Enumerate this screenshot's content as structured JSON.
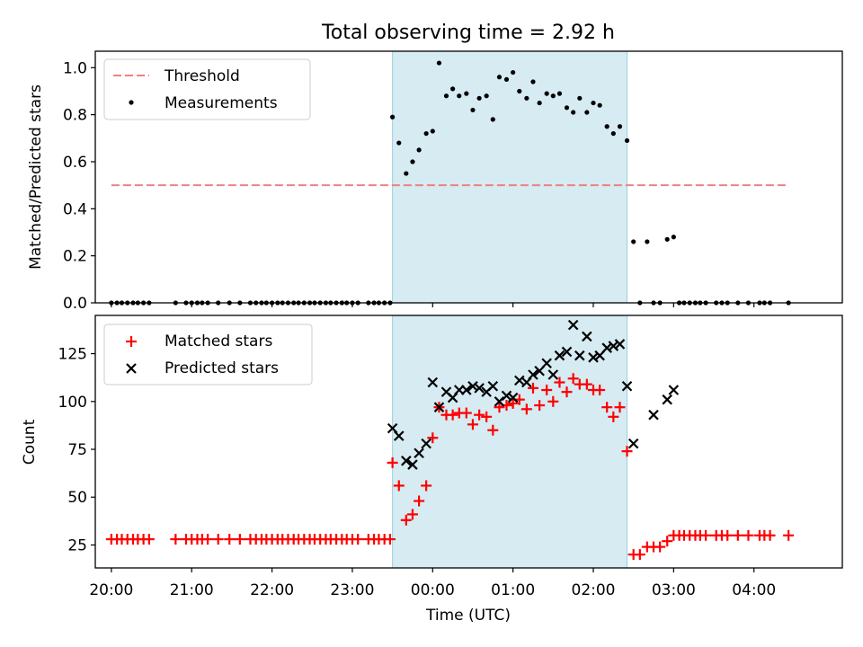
{
  "figure": {
    "title": "Total observing time = 2.92 h"
  },
  "chart_data": [
    {
      "type": "scatter",
      "panel": "top",
      "ylabel": "Matched/Predicted stars",
      "xlim": [
        -4.2,
        5.1
      ],
      "ylim": [
        0,
        1.07
      ],
      "yticks": [
        0.0,
        0.2,
        0.4,
        0.6,
        0.8,
        1.0
      ],
      "ytick_labels": [
        "0.0",
        "0.2",
        "0.4",
        "0.6",
        "0.8",
        "1.0"
      ],
      "grid": false,
      "legend": "top-left",
      "shaded_span": {
        "x": [
          -0.5,
          2.42
        ],
        "color": "#add8e6"
      },
      "threshold": {
        "name": "Threshold",
        "y": 0.5,
        "x": [
          -4.0,
          4.43
        ],
        "color": "#f08080",
        "style": "dashed"
      },
      "series": [
        {
          "name": "Measurements",
          "marker": "dot",
          "color": "#000000",
          "points": [
            [
              -4.0,
              0
            ],
            [
              -3.93,
              0
            ],
            [
              -3.87,
              0
            ],
            [
              -3.8,
              0
            ],
            [
              -3.73,
              0
            ],
            [
              -3.67,
              0
            ],
            [
              -3.6,
              0
            ],
            [
              -3.53,
              0
            ],
            [
              -3.2,
              0
            ],
            [
              -3.07,
              0
            ],
            [
              -3.0,
              0
            ],
            [
              -2.93,
              0
            ],
            [
              -2.87,
              0
            ],
            [
              -2.8,
              0
            ],
            [
              -2.67,
              0
            ],
            [
              -2.53,
              0
            ],
            [
              -2.4,
              0
            ],
            [
              -2.27,
              0
            ],
            [
              -2.2,
              0
            ],
            [
              -2.13,
              0
            ],
            [
              -2.07,
              0
            ],
            [
              -2.0,
              0
            ],
            [
              -1.93,
              0
            ],
            [
              -1.87,
              0
            ],
            [
              -1.8,
              0
            ],
            [
              -1.73,
              0
            ],
            [
              -1.67,
              0
            ],
            [
              -1.6,
              0
            ],
            [
              -1.53,
              0
            ],
            [
              -1.47,
              0
            ],
            [
              -1.4,
              0
            ],
            [
              -1.33,
              0
            ],
            [
              -1.27,
              0
            ],
            [
              -1.2,
              0
            ],
            [
              -1.13,
              0
            ],
            [
              -1.07,
              0
            ],
            [
              -1.0,
              0
            ],
            [
              -0.93,
              0
            ],
            [
              -0.8,
              0
            ],
            [
              -0.73,
              0
            ],
            [
              -0.67,
              0
            ],
            [
              -0.6,
              0
            ],
            [
              -0.53,
              0
            ],
            [
              -0.5,
              0.79
            ],
            [
              -0.42,
              0.68
            ],
            [
              -0.33,
              0.55
            ],
            [
              -0.25,
              0.6
            ],
            [
              -0.17,
              0.65
            ],
            [
              -0.08,
              0.72
            ],
            [
              0.0,
              0.73
            ],
            [
              0.08,
              1.02
            ],
            [
              0.17,
              0.88
            ],
            [
              0.25,
              0.91
            ],
            [
              0.33,
              0.88
            ],
            [
              0.42,
              0.89
            ],
            [
              0.5,
              0.82
            ],
            [
              0.58,
              0.87
            ],
            [
              0.67,
              0.88
            ],
            [
              0.75,
              0.78
            ],
            [
              0.83,
              0.96
            ],
            [
              0.92,
              0.95
            ],
            [
              1.0,
              0.98
            ],
            [
              1.08,
              0.9
            ],
            [
              1.17,
              0.87
            ],
            [
              1.25,
              0.94
            ],
            [
              1.33,
              0.85
            ],
            [
              1.42,
              0.89
            ],
            [
              1.5,
              0.88
            ],
            [
              1.58,
              0.89
            ],
            [
              1.67,
              0.83
            ],
            [
              1.75,
              0.81
            ],
            [
              1.83,
              0.87
            ],
            [
              1.92,
              0.81
            ],
            [
              2.0,
              0.85
            ],
            [
              2.08,
              0.84
            ],
            [
              2.17,
              0.75
            ],
            [
              2.25,
              0.72
            ],
            [
              2.33,
              0.75
            ],
            [
              2.42,
              0.69
            ],
            [
              2.5,
              0.26
            ],
            [
              2.58,
              0
            ],
            [
              2.67,
              0.26
            ],
            [
              2.75,
              0
            ],
            [
              2.83,
              0
            ],
            [
              2.92,
              0.27
            ],
            [
              3.0,
              0.28
            ],
            [
              3.07,
              0
            ],
            [
              3.13,
              0
            ],
            [
              3.2,
              0
            ],
            [
              3.27,
              0
            ],
            [
              3.33,
              0
            ],
            [
              3.4,
              0
            ],
            [
              3.53,
              0
            ],
            [
              3.6,
              0
            ],
            [
              3.67,
              0
            ],
            [
              3.8,
              0
            ],
            [
              3.93,
              0
            ],
            [
              4.07,
              0
            ],
            [
              4.13,
              0
            ],
            [
              4.2,
              0
            ],
            [
              4.43,
              0
            ]
          ]
        }
      ]
    },
    {
      "type": "scatter",
      "panel": "bottom",
      "xlabel": "Time (UTC)",
      "ylabel": "Count",
      "xlim": [
        -4.2,
        5.1
      ],
      "ylim": [
        13,
        145
      ],
      "xticks": [
        -4,
        -3,
        -2,
        -1,
        0,
        1,
        2,
        3,
        4
      ],
      "xtick_labels": [
        "20:00",
        "21:00",
        "22:00",
        "23:00",
        "00:00",
        "01:00",
        "02:00",
        "03:00",
        "04:00"
      ],
      "yticks": [
        25,
        50,
        75,
        100,
        125
      ],
      "ytick_labels": [
        "25",
        "50",
        "75",
        "100",
        "125"
      ],
      "grid": false,
      "legend": "top-left",
      "shaded_span": {
        "x": [
          -0.5,
          2.42
        ],
        "color": "#add8e6"
      },
      "series": [
        {
          "name": "Matched stars",
          "marker": "plus",
          "color": "#ff0000",
          "points": [
            [
              -4.0,
              28
            ],
            [
              -3.93,
              28
            ],
            [
              -3.87,
              28
            ],
            [
              -3.8,
              28
            ],
            [
              -3.73,
              28
            ],
            [
              -3.67,
              28
            ],
            [
              -3.6,
              28
            ],
            [
              -3.53,
              28
            ],
            [
              -3.2,
              28
            ],
            [
              -3.07,
              28
            ],
            [
              -3.0,
              28
            ],
            [
              -2.93,
              28
            ],
            [
              -2.87,
              28
            ],
            [
              -2.8,
              28
            ],
            [
              -2.67,
              28
            ],
            [
              -2.53,
              28
            ],
            [
              -2.4,
              28
            ],
            [
              -2.27,
              28
            ],
            [
              -2.2,
              28
            ],
            [
              -2.13,
              28
            ],
            [
              -2.07,
              28
            ],
            [
              -2.0,
              28
            ],
            [
              -1.93,
              28
            ],
            [
              -1.87,
              28
            ],
            [
              -1.8,
              28
            ],
            [
              -1.73,
              28
            ],
            [
              -1.67,
              28
            ],
            [
              -1.6,
              28
            ],
            [
              -1.53,
              28
            ],
            [
              -1.47,
              28
            ],
            [
              -1.4,
              28
            ],
            [
              -1.33,
              28
            ],
            [
              -1.27,
              28
            ],
            [
              -1.2,
              28
            ],
            [
              -1.13,
              28
            ],
            [
              -1.07,
              28
            ],
            [
              -1.0,
              28
            ],
            [
              -0.93,
              28
            ],
            [
              -0.8,
              28
            ],
            [
              -0.73,
              28
            ],
            [
              -0.67,
              28
            ],
            [
              -0.6,
              28
            ],
            [
              -0.53,
              28
            ],
            [
              -0.5,
              68
            ],
            [
              -0.42,
              56
            ],
            [
              -0.33,
              38
            ],
            [
              -0.25,
              41
            ],
            [
              -0.17,
              48
            ],
            [
              -0.08,
              56
            ],
            [
              0.0,
              81
            ],
            [
              0.08,
              97
            ],
            [
              0.17,
              93
            ],
            [
              0.25,
              93
            ],
            [
              0.33,
              94
            ],
            [
              0.42,
              94
            ],
            [
              0.5,
              88
            ],
            [
              0.58,
              93
            ],
            [
              0.67,
              92
            ],
            [
              0.75,
              85
            ],
            [
              0.83,
              97
            ],
            [
              0.92,
              98
            ],
            [
              1.0,
              99
            ],
            [
              1.08,
              101
            ],
            [
              1.17,
              96
            ],
            [
              1.25,
              107
            ],
            [
              1.33,
              98
            ],
            [
              1.42,
              106
            ],
            [
              1.5,
              100
            ],
            [
              1.58,
              110
            ],
            [
              1.67,
              105
            ],
            [
              1.75,
              112
            ],
            [
              1.83,
              109
            ],
            [
              1.92,
              109
            ],
            [
              2.0,
              106
            ],
            [
              2.08,
              106
            ],
            [
              2.17,
              97
            ],
            [
              2.25,
              92
            ],
            [
              2.33,
              97
            ],
            [
              2.42,
              74
            ],
            [
              2.5,
              20
            ],
            [
              2.58,
              20
            ],
            [
              2.67,
              24
            ],
            [
              2.75,
              24
            ],
            [
              2.83,
              24
            ],
            [
              2.92,
              27
            ],
            [
              3.0,
              30
            ],
            [
              3.07,
              30
            ],
            [
              3.13,
              30
            ],
            [
              3.2,
              30
            ],
            [
              3.27,
              30
            ],
            [
              3.33,
              30
            ],
            [
              3.4,
              30
            ],
            [
              3.53,
              30
            ],
            [
              3.6,
              30
            ],
            [
              3.67,
              30
            ],
            [
              3.8,
              30
            ],
            [
              3.93,
              30
            ],
            [
              4.07,
              30
            ],
            [
              4.13,
              30
            ],
            [
              4.2,
              30
            ],
            [
              4.43,
              30
            ]
          ]
        },
        {
          "name": "Predicted stars",
          "marker": "x",
          "color": "#000000",
          "points": [
            [
              -0.5,
              86
            ],
            [
              -0.42,
              82
            ],
            [
              -0.33,
              69
            ],
            [
              -0.25,
              67
            ],
            [
              -0.17,
              73
            ],
            [
              -0.08,
              78
            ],
            [
              0.0,
              110
            ],
            [
              0.08,
              97
            ],
            [
              0.17,
              105
            ],
            [
              0.25,
              102
            ],
            [
              0.33,
              106
            ],
            [
              0.42,
              106
            ],
            [
              0.5,
              108
            ],
            [
              0.58,
              107
            ],
            [
              0.67,
              105
            ],
            [
              0.75,
              108
            ],
            [
              0.83,
              100
            ],
            [
              0.92,
              103
            ],
            [
              1.0,
              102
            ],
            [
              1.08,
              111
            ],
            [
              1.17,
              110
            ],
            [
              1.25,
              114
            ],
            [
              1.33,
              116
            ],
            [
              1.42,
              120
            ],
            [
              1.5,
              114
            ],
            [
              1.58,
              124
            ],
            [
              1.67,
              126
            ],
            [
              1.75,
              140
            ],
            [
              1.83,
              124
            ],
            [
              1.92,
              134
            ],
            [
              2.0,
              123
            ],
            [
              2.08,
              124
            ],
            [
              2.17,
              128
            ],
            [
              2.25,
              129
            ],
            [
              2.33,
              130
            ],
            [
              2.42,
              108
            ],
            [
              2.5,
              78
            ],
            [
              2.75,
              93
            ],
            [
              2.92,
              101
            ],
            [
              3.0,
              106
            ]
          ]
        }
      ]
    }
  ]
}
